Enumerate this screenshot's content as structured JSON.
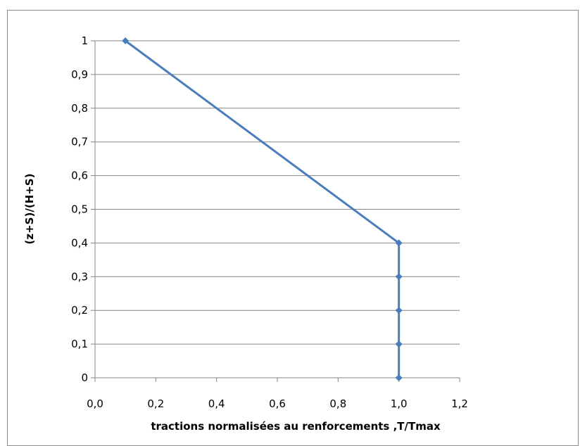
{
  "chart_data": {
    "type": "line",
    "xlabel": "tractions normalisées au renforcements ,T/Tmax",
    "ylabel": "(z+S)/(H+S)",
    "xlim": [
      0,
      1.2
    ],
    "ylim": [
      0,
      1
    ],
    "x_ticks": [
      "0,0",
      "0,2",
      "0,4",
      "0,6",
      "0,8",
      "1,0",
      "1,2"
    ],
    "y_ticks": [
      "0",
      "0,1",
      "0,2",
      "0,3",
      "0,4",
      "0,5",
      "0,6",
      "0,7",
      "0,8",
      "0,9",
      "1"
    ],
    "grid": "horizontal",
    "legend": "none",
    "series": [
      {
        "color": "#4a7ebb",
        "points": [
          {
            "x": 0.1,
            "y": 1.0
          },
          {
            "x": 1.0,
            "y": 0.4
          },
          {
            "x": 1.0,
            "y": 0.3
          },
          {
            "x": 1.0,
            "y": 0.2
          },
          {
            "x": 1.0,
            "y": 0.1
          },
          {
            "x": 1.0,
            "y": 0.0
          }
        ]
      }
    ]
  }
}
